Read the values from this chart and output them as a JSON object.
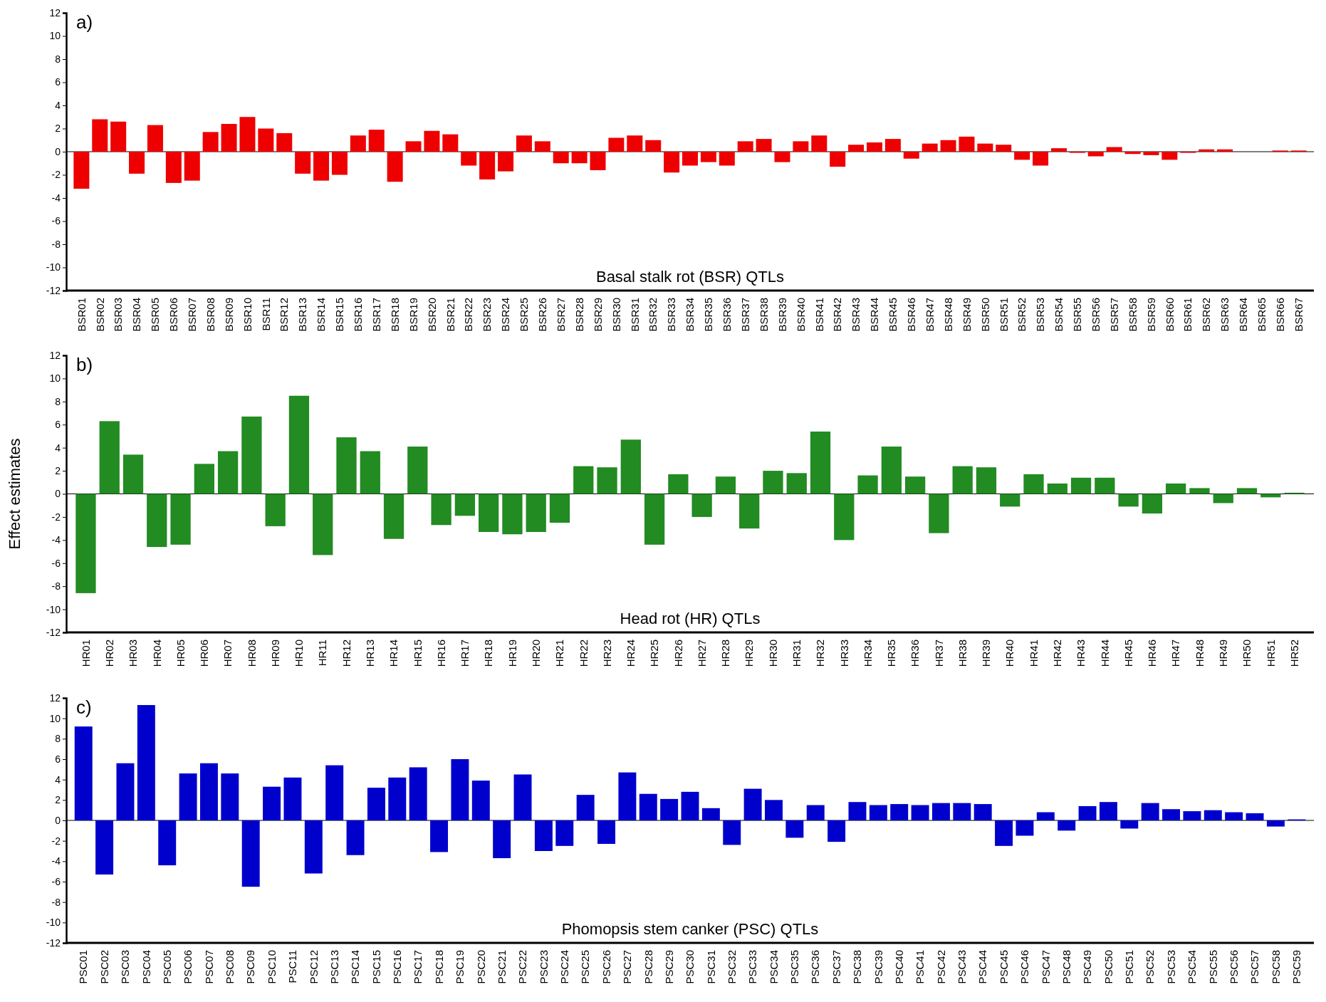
{
  "chart_data": [
    {
      "type": "bar",
      "title": "a)",
      "xlabel": "Basal stalk rot (BSR) QTLs",
      "categories": [
        "BSR01",
        "BSR02",
        "BSR03",
        "BSR04",
        "BSR05",
        "BSR06",
        "BSR07",
        "BSR08",
        "BSR09",
        "BSR10",
        "BSR11",
        "BSR12",
        "BSR13",
        "BSR14",
        "BSR15",
        "BSR16",
        "BSR17",
        "BSR18",
        "BSR19",
        "BSR20",
        "BSR21",
        "BSR22",
        "BSR23",
        "BSR24",
        "BSR25",
        "BSR26",
        "BSR27",
        "BSR28",
        "BSR29",
        "BSR30",
        "BSR31",
        "BSR32",
        "BSR33",
        "BSR34",
        "BSR35",
        "BSR36",
        "BSR37",
        "BSR38",
        "BSR39",
        "BSR40",
        "BSR41",
        "BSR42",
        "BSR43",
        "BSR44",
        "BSR45",
        "BSR46",
        "BSR47",
        "BSR48",
        "BSR49",
        "BSR50",
        "BSR51",
        "BSR52",
        "BSR53",
        "BSR54",
        "BSR55",
        "BSR56",
        "BSR57",
        "BSR58",
        "BSR59",
        "BSR60",
        "BSR61",
        "BSR62",
        "BSR63",
        "BSR64",
        "BSR65",
        "BSR66",
        "BSR67"
      ],
      "values": [
        -3.2,
        2.8,
        2.6,
        -1.9,
        2.3,
        -2.7,
        -2.5,
        1.7,
        2.4,
        3.0,
        2.0,
        1.6,
        -1.9,
        -2.5,
        -2.0,
        1.4,
        1.9,
        -2.6,
        0.9,
        1.8,
        1.5,
        -1.2,
        -2.4,
        -1.7,
        1.4,
        0.9,
        -1.0,
        -1.0,
        -1.6,
        1.2,
        1.4,
        1.0,
        -1.8,
        -1.2,
        -0.9,
        -1.2,
        0.9,
        1.1,
        -0.9,
        0.9,
        1.4,
        -1.3,
        0.6,
        0.8,
        1.1,
        -0.6,
        0.7,
        1.0,
        1.3,
        0.7,
        0.6,
        -0.7,
        -1.2,
        0.3,
        -0.1,
        -0.4,
        0.4,
        -0.2,
        -0.3,
        -0.7,
        -0.1,
        0.2,
        0.2,
        0,
        0,
        0.1,
        0.1
      ],
      "color": "#ee0000",
      "ylim": [
        -12,
        12
      ],
      "yticks": [
        -12,
        -10,
        -8,
        -6,
        -4,
        -2,
        0,
        2,
        4,
        6,
        8,
        10,
        12
      ]
    },
    {
      "type": "bar",
      "title": "b)",
      "xlabel": "Head rot (HR) QTLs",
      "ylabel": "Effect estimates",
      "categories": [
        "HR01",
        "HR02",
        "HR03",
        "HR04",
        "HR05",
        "HR06",
        "HR07",
        "HR08",
        "HR09",
        "HR10",
        "HR11",
        "HR12",
        "HR13",
        "HR14",
        "HR15",
        "HR16",
        "HR17",
        "HR18",
        "HR19",
        "HR20",
        "HR21",
        "HR22",
        "HR23",
        "HR24",
        "HR25",
        "HR26",
        "HR27",
        "HR28",
        "HR29",
        "HR30",
        "HR31",
        "HR32",
        "HR33",
        "HR34",
        "HR35",
        "HR36",
        "HR37",
        "HR38",
        "HR39",
        "HR40",
        "HR41",
        "HR42",
        "HR43",
        "HR44",
        "HR45",
        "HR46",
        "HR47",
        "HR48",
        "HR49",
        "HR50",
        "HR51",
        "HR52"
      ],
      "values": [
        -8.6,
        6.3,
        3.4,
        -4.6,
        -4.4,
        2.6,
        3.7,
        6.7,
        -2.8,
        8.5,
        -5.3,
        4.9,
        3.7,
        -3.9,
        4.1,
        -2.7,
        -1.9,
        -3.3,
        -3.5,
        -3.3,
        -2.5,
        2.4,
        2.3,
        4.7,
        -4.4,
        1.7,
        -2.0,
        1.5,
        -3.0,
        2.0,
        1.8,
        5.4,
        -4.0,
        1.6,
        4.1,
        1.5,
        -3.4,
        2.4,
        2.3,
        -1.1,
        1.7,
        0.9,
        1.4,
        1.4,
        -1.1,
        -1.7,
        0.9,
        0.5,
        -0.8,
        0.5,
        -0.3,
        0.1
      ],
      "color": "#228b22",
      "ylim": [
        -12,
        12
      ],
      "yticks": [
        -12,
        -10,
        -8,
        -6,
        -4,
        -2,
        0,
        2,
        4,
        6,
        8,
        10,
        12
      ]
    },
    {
      "type": "bar",
      "title": "c)",
      "xlabel": "Phomopsis stem canker (PSC) QTLs",
      "categories": [
        "PSC01",
        "PSC02",
        "PSC03",
        "PSC04",
        "PSC05",
        "PSC06",
        "PSC07",
        "PSC08",
        "PSC09",
        "PSC10",
        "PSC11",
        "PSC12",
        "PSC13",
        "PSC14",
        "PSC15",
        "PSC16",
        "PSC17",
        "PSC18",
        "PSC19",
        "PSC20",
        "PSC21",
        "PSC22",
        "PSC23",
        "PSC24",
        "PSC25",
        "PSC26",
        "PSC27",
        "PSC28",
        "PSC29",
        "PSC30",
        "PSC31",
        "PSC32",
        "PSC33",
        "PSC34",
        "PSC35",
        "PSC36",
        "PSC37",
        "PSC38",
        "PSC39",
        "PSC40",
        "PSC41",
        "PSC42",
        "PSC43",
        "PSC44",
        "PSC45",
        "PSC46",
        "PSC47",
        "PSC48",
        "PSC49",
        "PSC50",
        "PSC51",
        "PSC52",
        "PSC53",
        "PSC54",
        "PSC55",
        "PSC56",
        "PSC57",
        "PSC58",
        "PSC59"
      ],
      "values": [
        9.2,
        -5.3,
        5.6,
        11.3,
        -4.4,
        4.6,
        5.6,
        4.6,
        -6.5,
        3.3,
        4.2,
        -5.2,
        5.4,
        -3.4,
        3.2,
        4.2,
        5.2,
        -3.1,
        6.0,
        3.9,
        -3.7,
        4.5,
        -3.0,
        -2.5,
        2.5,
        -2.3,
        4.7,
        2.6,
        2.1,
        2.8,
        1.2,
        -2.4,
        3.1,
        2.0,
        -1.7,
        1.5,
        -2.1,
        1.8,
        1.5,
        1.6,
        1.5,
        1.7,
        1.7,
        1.6,
        -2.5,
        -1.5,
        0.8,
        -1.0,
        1.4,
        1.8,
        -0.8,
        1.7,
        1.1,
        0.9,
        1.0,
        0.8,
        0.7,
        -0.6,
        0.1
      ],
      "color": "#0000cc",
      "ylim": [
        -12,
        12
      ],
      "yticks": [
        -12,
        -10,
        -8,
        -6,
        -4,
        -2,
        0,
        2,
        4,
        6,
        8,
        10,
        12
      ]
    }
  ]
}
